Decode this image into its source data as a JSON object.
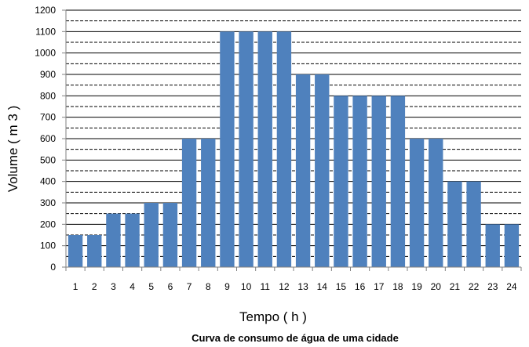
{
  "chart_data": {
    "type": "bar",
    "categories": [
      "1",
      "2",
      "3",
      "4",
      "5",
      "6",
      "7",
      "8",
      "9",
      "10",
      "11",
      "12",
      "13",
      "14",
      "15",
      "16",
      "17",
      "18",
      "19",
      "20",
      "21",
      "22",
      "23",
      "24"
    ],
    "values": [
      150,
      150,
      250,
      250,
      300,
      300,
      600,
      600,
      1100,
      1100,
      1100,
      1100,
      900,
      900,
      800,
      800,
      800,
      800,
      600,
      600,
      400,
      400,
      200,
      200
    ],
    "y_ticks": [
      "0",
      "100",
      "200",
      "300",
      "400",
      "500",
      "600",
      "700",
      "800",
      "900",
      "1000",
      "1100",
      "1200"
    ],
    "ylim": [
      0,
      1200
    ],
    "minor_grid_step": 50,
    "xlabel": "Tempo ( h )",
    "ylabel": "Volume ( m 3 )",
    "title": "Curva de consumo de água de uma cidade",
    "grid": true,
    "legend": "none",
    "bar_color": "#4F81BD"
  }
}
